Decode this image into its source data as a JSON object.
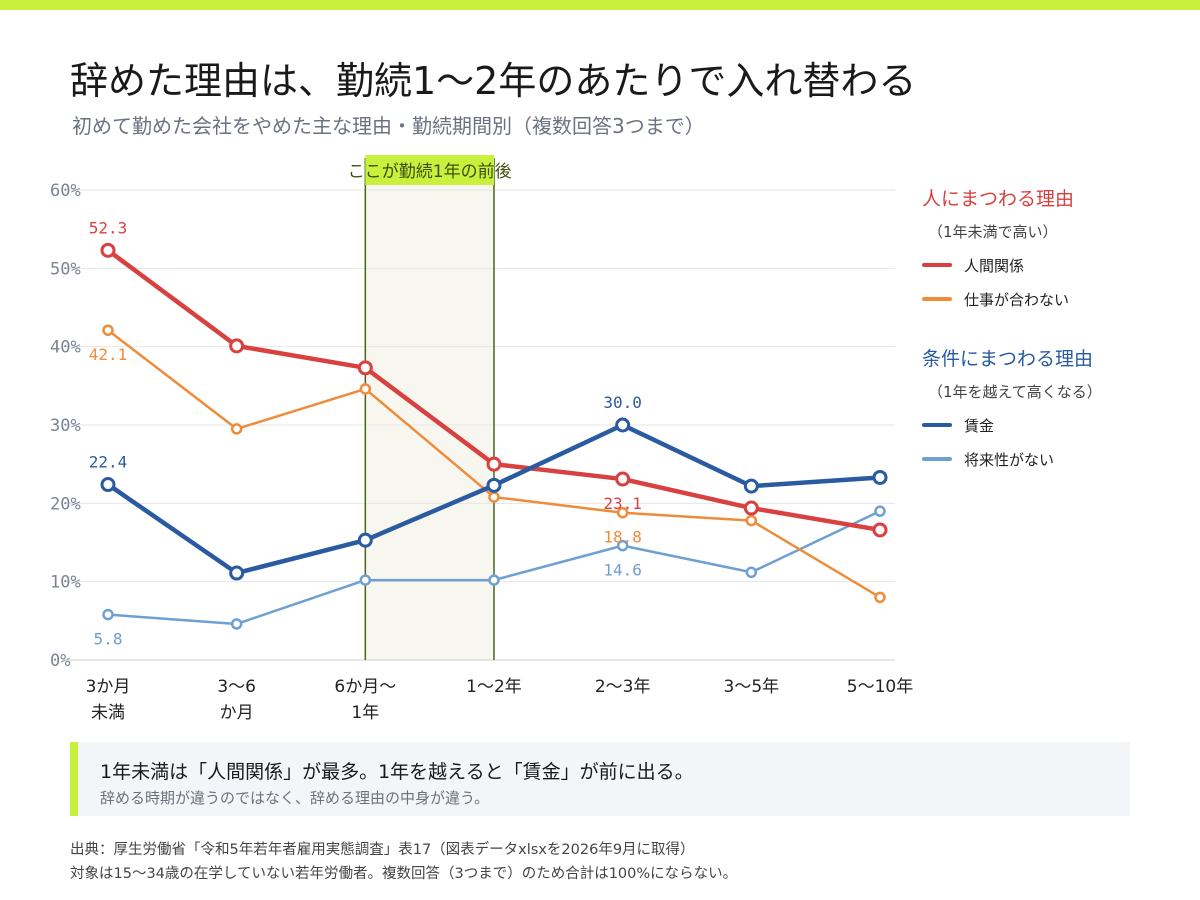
{
  "colors": {
    "accent": "#c8f03c",
    "person": "#d94040",
    "job": "#ee8c3a",
    "wage": "#2a5aa0",
    "future": "#6fa0d2",
    "highlight_fill": "#f7f7f0",
    "highlight_line": "#4a6418"
  },
  "title": "辞めた理由は、勤続1〜2年のあたりで入れ替わる",
  "subtitle": "初めて勤めた会社をやめた主な理由・勤続期間別（複数回答3つまで）",
  "chart_data": {
    "type": "line",
    "categories": [
      [
        "3か月",
        "未満"
      ],
      [
        "3〜6",
        "か月"
      ],
      [
        "6か月〜",
        "1年"
      ],
      [
        "1〜2年"
      ],
      [
        "2〜3年"
      ],
      [
        "3〜5年"
      ],
      [
        "5〜10年"
      ]
    ],
    "ylim": [
      0,
      60
    ],
    "yticks": [
      0,
      10,
      20,
      30,
      40,
      50,
      60
    ],
    "ytick_labels": [
      "0%",
      "10%",
      "20%",
      "30%",
      "40%",
      "50%",
      "60%"
    ],
    "grid": true,
    "highlight": {
      "from_index": 2,
      "to_index": 3,
      "label": "ここが勤続1年の前後"
    },
    "series": [
      {
        "name": "将来性がない",
        "color": "#6fa0d2",
        "weight": "thin",
        "values": [
          5.8,
          4.6,
          10.2,
          10.2,
          14.6,
          11.2,
          19.0
        ],
        "labels": [
          {
            "index": 0,
            "text": "5.8",
            "pos": "below"
          },
          {
            "index": 4,
            "text": "14.6",
            "pos": "below"
          }
        ]
      },
      {
        "name": "仕事が合わない",
        "color": "#ee8c3a",
        "weight": "thin",
        "values": [
          42.1,
          29.5,
          34.6,
          20.8,
          18.8,
          17.8,
          8.0
        ],
        "labels": [
          {
            "index": 0,
            "text": "42.1",
            "pos": "below"
          },
          {
            "index": 4,
            "text": "18.8",
            "pos": "below"
          }
        ]
      },
      {
        "name": "人間関係",
        "color": "#d94040",
        "weight": "thick",
        "values": [
          52.3,
          40.1,
          37.3,
          25.0,
          23.1,
          19.4,
          16.6
        ],
        "labels": [
          {
            "index": 0,
            "text": "52.3",
            "pos": "above"
          },
          {
            "index": 4,
            "text": "23.1",
            "pos": "below"
          }
        ]
      },
      {
        "name": "賃金",
        "color": "#2a5aa0",
        "weight": "thick",
        "values": [
          22.4,
          11.1,
          15.3,
          22.3,
          30.0,
          22.2,
          23.3
        ],
        "labels": [
          {
            "index": 0,
            "text": "22.4",
            "pos": "above"
          },
          {
            "index": 4,
            "text": "30.0",
            "pos": "above"
          }
        ]
      }
    ]
  },
  "legend": {
    "groups": [
      {
        "title": "人にまつわる理由",
        "subtitle": "（1年未満で高い）",
        "color": "#d94040",
        "items": [
          {
            "label": "人間関係",
            "color": "#d94040"
          },
          {
            "label": "仕事が合わない",
            "color": "#ee8c3a"
          }
        ]
      },
      {
        "title": "条件にまつわる理由",
        "subtitle": "（1年を越えて高くなる）",
        "color": "#2a5aa0",
        "items": [
          {
            "label": "賃金",
            "color": "#2a5aa0"
          },
          {
            "label": "将来性がない",
            "color": "#6fa0d2"
          }
        ]
      }
    ]
  },
  "takeaway": {
    "main": "1年未満は「人間関係」が最多。1年を越えると「賃金」が前に出る。",
    "sub": "辞める時期が違うのではなく、辞める理由の中身が違う。"
  },
  "source": {
    "line1": "出典：厚生労働省「令和5年若年者雇用実態調査」表17（図表データxlsxを2026年9月に取得）",
    "line2": "対象は15〜34歳の在学していない若年労働者。複数回答（3つまで）のため合計は100%にならない。"
  }
}
